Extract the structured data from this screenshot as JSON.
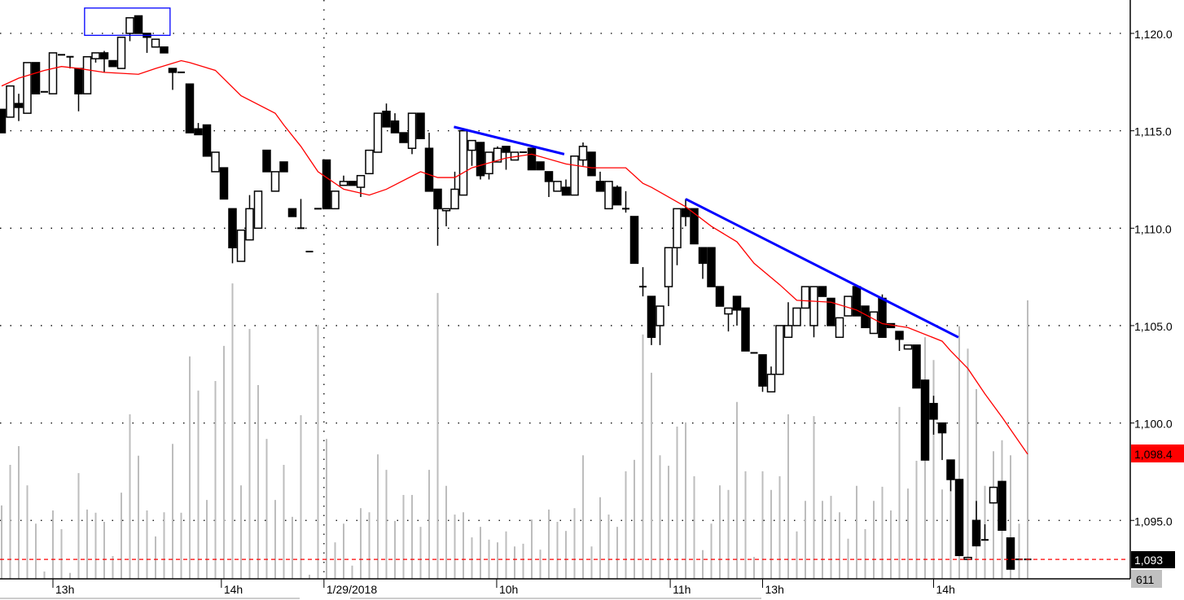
{
  "chart_data": {
    "type": "candlestick",
    "title": "",
    "y_axis": {
      "position": "right",
      "ticks": [
        1120.0,
        1115.0,
        1110.0,
        1105.0,
        1100.0,
        1095.0
      ],
      "tick_labels": [
        "1,120.0",
        "1,115.0",
        "1,110.0",
        "1,105.0",
        "1,100.0",
        "1,095.0"
      ],
      "grid": "dotted"
    },
    "x_axis": {
      "ticks": [
        {
          "bar": 6,
          "label": "13h"
        },
        {
          "bar": 25.7,
          "label": "14h"
        },
        {
          "bar": 37.7,
          "label": "1/29/2018"
        },
        {
          "bar": 57.9,
          "label": "10h"
        },
        {
          "bar": 78.2,
          "label": "11h"
        },
        {
          "bar": 89,
          "label": "13h"
        },
        {
          "bar": 109,
          "label": "14h"
        }
      ],
      "session_separator_bar": 37.7
    },
    "candles_ohlc": [
      [
        1116.1,
        1116.1,
        1114.9,
        1114.9
      ],
      [
        1115.7,
        1117.3,
        1115.7,
        1117.3
      ],
      [
        1116.4,
        1116.9,
        1115.5,
        1116.2
      ],
      [
        1115.9,
        1118.5,
        1115.9,
        1118.5
      ],
      [
        1118.5,
        1118.5,
        1116.9,
        1116.9
      ],
      [
        1117.0,
        1117.0,
        1117.0,
        1117.0
      ],
      [
        1116.9,
        1119.0,
        1116.9,
        1119.0
      ],
      [
        1118.9,
        1118.9,
        1118.9,
        1118.9
      ],
      [
        1118.8,
        1118.8,
        1118.2,
        1118.75
      ],
      [
        1118.2,
        1118.2,
        1116.0,
        1116.9
      ],
      [
        1116.9,
        1118.8,
        1116.9,
        1118.8
      ],
      [
        1118.7,
        1119.0,
        1118.5,
        1119.0
      ],
      [
        1119.0,
        1119.1,
        1118.0,
        1118.7
      ],
      [
        1118.6,
        1118.6,
        1118.3,
        1118.3
      ],
      [
        1118.2,
        1119.8,
        1118.2,
        1119.8
      ],
      [
        1120.0,
        1120.8,
        1119.6,
        1120.8
      ],
      [
        1120.9,
        1120.9,
        1120.0,
        1120.0
      ],
      [
        1120.0,
        1120.0,
        1119.0,
        1119.8
      ],
      [
        1119.3,
        1119.7,
        1119.3,
        1119.7
      ],
      [
        1119.3,
        1119.3,
        1119.0,
        1119.0
      ],
      [
        1118.2,
        1118.2,
        1117.1,
        1118.0
      ],
      [
        1118.0,
        1118.0,
        1118.0,
        1118.0
      ],
      [
        1117.4,
        1117.4,
        1114.9,
        1114.9
      ],
      [
        1115.1,
        1115.4,
        1114.8,
        1114.8
      ],
      [
        1115.3,
        1115.3,
        1113.7,
        1113.7
      ],
      [
        1112.9,
        1113.9,
        1112.9,
        1113.9
      ],
      [
        1113.1,
        1113.1,
        1111.5,
        1111.5
      ],
      [
        1111.0,
        1111.0,
        1108.2,
        1109.0
      ],
      [
        1108.3,
        1109.9,
        1108.3,
        1109.9
      ],
      [
        1109.4,
        1111.7,
        1109.4,
        1111.0
      ],
      [
        1110.0,
        1111.9,
        1110.0,
        1111.9
      ],
      [
        1114.0,
        1114.0,
        1112.9,
        1112.9
      ],
      [
        1111.9,
        1112.9,
        1111.9,
        1112.9
      ],
      [
        1113.4,
        1113.4,
        1112.9,
        1112.9
      ],
      [
        1111.0,
        1111.0,
        1110.6,
        1110.6
      ],
      [
        1110.0,
        1111.5,
        1110.0,
        1110.0
      ],
      [
        1108.8,
        1108.8,
        1108.8,
        1108.8
      ],
      [
        1111.0,
        1111.0,
        1111.0,
        1111.0
      ],
      [
        1113.5,
        1113.5,
        1111.0,
        1111.0
      ],
      [
        1111.0,
        1111.9,
        1111.0,
        1111.9
      ],
      [
        1112.2,
        1112.7,
        1112.2,
        1112.4
      ],
      [
        1112.4,
        1112.4,
        1112.2,
        1112.2
      ],
      [
        1112.1,
        1112.7,
        1111.6,
        1112.7
      ],
      [
        1112.8,
        1114.0,
        1112.8,
        1114.0
      ],
      [
        1113.9,
        1115.9,
        1113.9,
        1115.9
      ],
      [
        1116.0,
        1116.4,
        1115.2,
        1115.2
      ],
      [
        1115.5,
        1115.9,
        1114.9,
        1114.9
      ],
      [
        1114.9,
        1114.9,
        1114.4,
        1114.4
      ],
      [
        1114.1,
        1115.9,
        1113.8,
        1115.9
      ],
      [
        1115.9,
        1115.9,
        1114.6,
        1114.6
      ],
      [
        1114.1,
        1114.9,
        1111.9,
        1111.9
      ],
      [
        1112.0,
        1112.0,
        1109.1,
        1111.0
      ],
      [
        1110.9,
        1111.0,
        1110.1,
        1111.0
      ],
      [
        1111.0,
        1112.9,
        1111.0,
        1112.0
      ],
      [
        1111.7,
        1115.0,
        1111.7,
        1115.0
      ],
      [
        1114.0,
        1114.5,
        1113.2,
        1114.5
      ],
      [
        1114.4,
        1114.4,
        1112.5,
        1112.7
      ],
      [
        1112.8,
        1113.9,
        1112.5,
        1113.9
      ],
      [
        1113.4,
        1114.2,
        1113.4,
        1114.1
      ],
      [
        1114.2,
        1114.2,
        1113.0,
        1113.9
      ],
      [
        1113.5,
        1113.9,
        1113.5,
        1113.9
      ],
      [
        1113.9,
        1113.9,
        1113.9,
        1113.9
      ],
      [
        1114.1,
        1114.1,
        1113.0,
        1113.0
      ],
      [
        1113.4,
        1113.4,
        1113.0,
        1113.0
      ],
      [
        1112.9,
        1112.9,
        1111.6,
        1112.4
      ],
      [
        1111.9,
        1112.4,
        1111.9,
        1112.4
      ],
      [
        1112.1,
        1112.5,
        1111.7,
        1111.7
      ],
      [
        1111.7,
        1113.7,
        1111.7,
        1113.7
      ],
      [
        1113.5,
        1114.4,
        1113.2,
        1114.2
      ],
      [
        1113.9,
        1113.9,
        1112.7,
        1112.7
      ],
      [
        1112.4,
        1112.9,
        1111.9,
        1111.9
      ],
      [
        1111.0,
        1112.4,
        1111.0,
        1112.4
      ],
      [
        1112.1,
        1112.2,
        1111.2,
        1111.2
      ],
      [
        1111.0,
        1111.9,
        1110.8,
        1111.0
      ],
      [
        1110.6,
        1110.6,
        1108.2,
        1108.2
      ],
      [
        1107.0,
        1108.0,
        1106.5,
        1107.0
      ],
      [
        1106.5,
        1106.5,
        1104.0,
        1104.4
      ],
      [
        1105.0,
        1106.0,
        1104.0,
        1106.0
      ],
      [
        1107.0,
        1109.0,
        1106.0,
        1109.0
      ],
      [
        1109.0,
        1111.0,
        1108.1,
        1111.0
      ],
      [
        1111.0,
        1111.5,
        1110.1,
        1110.6
      ],
      [
        1111.0,
        1111.0,
        1109.2,
        1109.2
      ],
      [
        1109.0,
        1109.0,
        1107.4,
        1108.2
      ],
      [
        1109.0,
        1109.0,
        1107.0,
        1107.0
      ],
      [
        1107.0,
        1107.0,
        1106.0,
        1106.0
      ],
      [
        1105.6,
        1105.9,
        1104.7,
        1105.9
      ],
      [
        1106.5,
        1106.5,
        1105.0,
        1105.8
      ],
      [
        1105.9,
        1105.9,
        1103.7,
        1103.7
      ],
      [
        1103.6,
        1103.6,
        1103.6,
        1103.6
      ],
      [
        1103.5,
        1103.5,
        1101.6,
        1101.9
      ],
      [
        1101.6,
        1102.9,
        1101.6,
        1102.5
      ],
      [
        1102.5,
        1105.0,
        1102.5,
        1105.0
      ],
      [
        1104.4,
        1106.2,
        1104.4,
        1105.0
      ],
      [
        1105.0,
        1105.9,
        1105.0,
        1105.9
      ],
      [
        1105.9,
        1107.0,
        1105.9,
        1107.0
      ],
      [
        1105.0,
        1107.0,
        1104.4,
        1107.0
      ],
      [
        1107.0,
        1107.0,
        1106.5,
        1106.5
      ],
      [
        1106.4,
        1106.4,
        1105.0,
        1105.0
      ],
      [
        1104.4,
        1105.4,
        1104.4,
        1105.4
      ],
      [
        1105.5,
        1106.5,
        1105.5,
        1106.5
      ],
      [
        1107.0,
        1107.1,
        1105.5,
        1105.5
      ],
      [
        1106.0,
        1106.0,
        1104.9,
        1104.9
      ],
      [
        1104.6,
        1105.7,
        1104.6,
        1105.7
      ],
      [
        1106.4,
        1106.6,
        1104.4,
        1104.4
      ],
      [
        1105.1,
        1105.1,
        1104.9,
        1104.9
      ],
      [
        1104.7,
        1104.7,
        1103.7,
        1104.3
      ],
      [
        1103.8,
        1104.0,
        1103.8,
        1104.0
      ],
      [
        1104.0,
        1104.0,
        1101.8,
        1101.8
      ],
      [
        1102.2,
        1102.2,
        1098.1,
        1098.1
      ],
      [
        1101.0,
        1101.4,
        1099.4,
        1100.2
      ],
      [
        1100.0,
        1100.0,
        1098.1,
        1099.5
      ],
      [
        1098.1,
        1098.1,
        1096.5,
        1097.1
      ],
      [
        1097.1,
        1097.1,
        1093.2,
        1093.2
      ],
      [
        1093.0,
        1093.1,
        1093.0,
        1093.1
      ],
      [
        1095.0,
        1096.0,
        1093.7,
        1093.7
      ],
      [
        1094.0,
        1094.8,
        1094.0,
        1094.0
      ],
      [
        1095.9,
        1096.7,
        1095.9,
        1096.7
      ],
      [
        1097.0,
        1097.0,
        1094.5,
        1094.5
      ],
      [
        1094.1,
        1094.1,
        1092.5,
        1092.5
      ],
      [
        1093.0,
        1093.0,
        1093.0,
        1093.0
      ],
      [
        1093.0,
        1093.0,
        1093.0,
        1093.0
      ]
    ],
    "volume": [
      161,
      250,
      291,
      205,
      121,
      16,
      150,
      109,
      13,
      232,
      152,
      145,
      125,
      50,
      189,
      361,
      270,
      150,
      93,
      146,
      296,
      145,
      488,
      413,
      173,
      434,
      511,
      648,
      205,
      548,
      425,
      307,
      173,
      250,
      136,
      359,
      9,
      557,
      307,
      80,
      121,
      29,
      155,
      146,
      273,
      239,
      127,
      184,
      184,
      114,
      239,
      627,
      204,
      141,
      146,
      91,
      114,
      86,
      80,
      104,
      71,
      77,
      130,
      64,
      152,
      125,
      105,
      155,
      271,
      71,
      179,
      141,
      114,
      236,
      261,
      536,
      452,
      271,
      248,
      334,
      343,
      225,
      63,
      121,
      205,
      195,
      388,
      236,
      48,
      236,
      195,
      225,
      361,
      104,
      171,
      357,
      171,
      182,
      146,
      88,
      204,
      109,
      171,
      202,
      150,
      377,
      198,
      259,
      530,
      480,
      196,
      232,
      554,
      505,
      416,
      204,
      280,
      304,
      271,
      121,
      611
    ],
    "moving_average": [
      [
        0,
        1117.3
      ],
      [
        2,
        1117.7
      ],
      [
        5,
        1118.1
      ],
      [
        7,
        1118.3
      ],
      [
        9,
        1118.2
      ],
      [
        12,
        1118.0
      ],
      [
        16,
        1117.9
      ],
      [
        18,
        1118.2
      ],
      [
        21,
        1118.6
      ],
      [
        22,
        1118.5
      ],
      [
        25,
        1118.1
      ],
      [
        28,
        1116.8
      ],
      [
        32,
        1115.9
      ],
      [
        33,
        1115.3
      ],
      [
        35,
        1114.2
      ],
      [
        37,
        1112.9
      ],
      [
        40,
        1112.0
      ],
      [
        43,
        1111.7
      ],
      [
        45,
        1112.0
      ],
      [
        49,
        1112.9
      ],
      [
        51,
        1112.6
      ],
      [
        53,
        1112.6
      ],
      [
        55,
        1113.1
      ],
      [
        59,
        1113.6
      ],
      [
        62,
        1113.8
      ],
      [
        66,
        1113.3
      ],
      [
        69,
        1113.1
      ],
      [
        71,
        1113.1
      ],
      [
        73,
        1113.1
      ],
      [
        75,
        1112.3
      ],
      [
        76,
        1112.1
      ],
      [
        80,
        1111.1
      ],
      [
        83,
        1110.1
      ],
      [
        86,
        1109.3
      ],
      [
        88,
        1108.2
      ],
      [
        91,
        1107.1
      ],
      [
        93,
        1106.3
      ],
      [
        97,
        1106.2
      ],
      [
        100,
        1105.8
      ],
      [
        103,
        1105.1
      ],
      [
        106,
        1104.9
      ],
      [
        110,
        1104.2
      ],
      [
        111,
        1103.7
      ],
      [
        113,
        1102.8
      ],
      [
        115,
        1101.5
      ],
      [
        117,
        1100.3
      ],
      [
        120,
        1098.4
      ]
    ],
    "trendlines": [
      {
        "from": [
          52.9,
          1115.2
        ],
        "to": [
          65.8,
          1113.8
        ]
      },
      {
        "from": [
          80.0,
          1111.5
        ],
        "to": [
          111.9,
          1104.4
        ]
      }
    ],
    "highlight_box": {
      "bar_from": 9.7,
      "bar_to": 19.7,
      "price_top": 1121.3,
      "price_bottom": 1119.9
    },
    "last_price": 1093.0,
    "last_price_label": "1,093",
    "ma_last_label": "1,098.4",
    "volume_label": "611",
    "colors": {
      "up_body": "#ffffff",
      "down_body": "#000000",
      "volume": "#bdbdbd",
      "moving_average": "#ff0000",
      "trendline": "#0000ff",
      "last_price_line": "#ff0000",
      "ma_label_bg": "#ff0000",
      "price_label_bg": "#000000",
      "volume_label_bg": "#c0c0c0"
    }
  }
}
